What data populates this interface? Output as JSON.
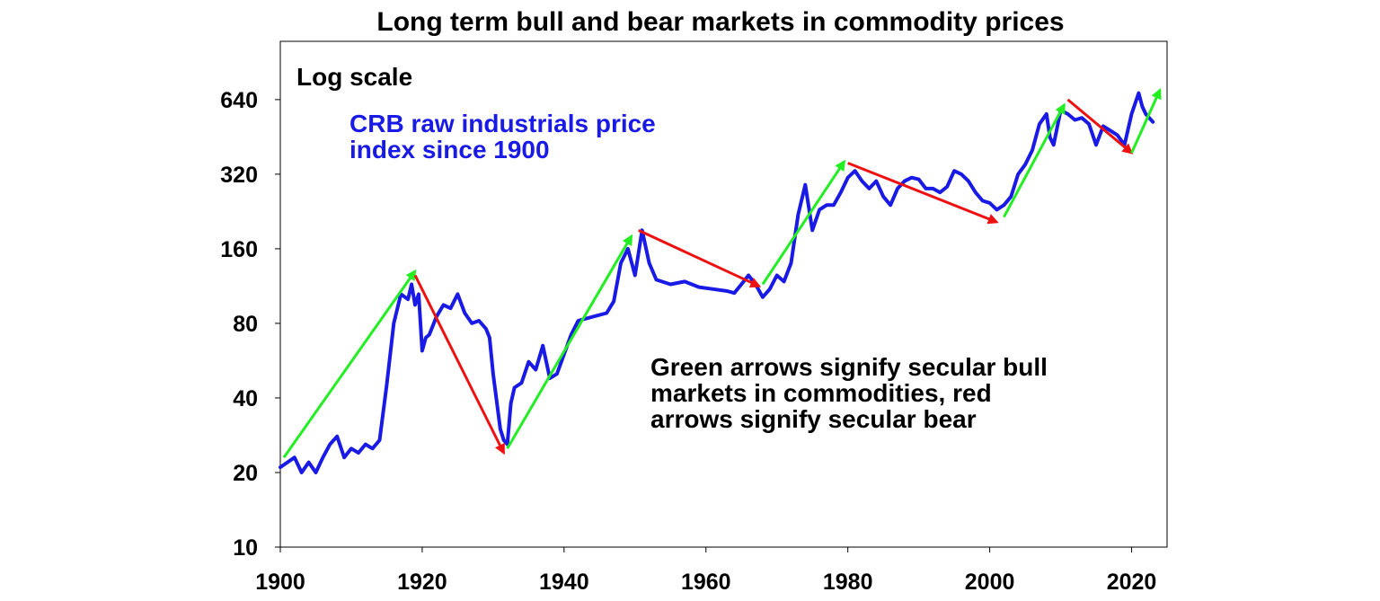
{
  "chart_data": {
    "type": "line",
    "title": "Long term bull and bear markets in commodity prices",
    "scale": "log",
    "xlim": [
      1900,
      2025
    ],
    "ylim": [
      10,
      1100
    ],
    "x_ticks": [
      "1900",
      "1920",
      "1940",
      "1960",
      "1980",
      "2000",
      "2020"
    ],
    "y_ticks": [
      "10",
      "20",
      "40",
      "80",
      "160",
      "320",
      "640"
    ],
    "annotations": {
      "scale_label": "Log scale",
      "series_label_line1": "CRB raw industrials price",
      "series_label_line2": "index since 1900",
      "note_line1": "Green arrows signify secular bull",
      "note_line2": "markets in commodities, red",
      "note_line3": "arrows signify secular bear"
    },
    "colors": {
      "series": "#1a1ae6",
      "bull": "#22ee22",
      "bear": "#ee1111"
    },
    "series": [
      {
        "x": [
          1900,
          1902,
          1903,
          1904,
          1905,
          1906,
          1907,
          1908,
          1909,
          1910,
          1911,
          1912,
          1913,
          1914,
          1915,
          1916,
          1917,
          1918,
          1918.5,
          1919,
          1919.5,
          1920,
          1920.5,
          1921,
          1922,
          1923,
          1924,
          1925,
          1926,
          1927,
          1928,
          1929,
          1929.5,
          1930,
          1931,
          1931.5,
          1932,
          1932.5,
          1933,
          1934,
          1935,
          1936,
          1937,
          1938,
          1939,
          1940,
          1941,
          1942,
          1944,
          1946,
          1947,
          1948,
          1949,
          1950,
          1951,
          1952,
          1953,
          1955,
          1957,
          1959,
          1961,
          1963,
          1964,
          1965,
          1966,
          1967,
          1968,
          1969,
          1970,
          1971,
          1972,
          1973,
          1974,
          1975,
          1976,
          1977,
          1978,
          1979,
          1980,
          1981,
          1982,
          1983,
          1984,
          1985,
          1986,
          1987,
          1988,
          1989,
          1990,
          1991,
          1992,
          1993,
          1994,
          1995,
          1996,
          1997,
          1998,
          1999,
          2000,
          2001,
          2002,
          2003,
          2004,
          2005,
          2006,
          2007,
          2008,
          2008.5,
          2009,
          2010,
          2011,
          2012,
          2013,
          2014,
          2015,
          2016,
          2017,
          2018,
          2019,
          2020,
          2021,
          2021.5,
          2022,
          2023
        ],
        "y": [
          21,
          23,
          20,
          22,
          20,
          23,
          26,
          28,
          23,
          25,
          24,
          26,
          25,
          27,
          45,
          80,
          105,
          100,
          115,
          95,
          105,
          62,
          70,
          72,
          85,
          95,
          92,
          105,
          88,
          80,
          82,
          76,
          70,
          50,
          30,
          27,
          26,
          38,
          44,
          46,
          56,
          52,
          65,
          48,
          50,
          60,
          72,
          82,
          85,
          88,
          98,
          140,
          160,
          125,
          190,
          140,
          120,
          115,
          118,
          112,
          110,
          108,
          106,
          115,
          125,
          115,
          102,
          110,
          125,
          118,
          140,
          220,
          290,
          190,
          230,
          240,
          240,
          270,
          310,
          330,
          300,
          280,
          300,
          260,
          240,
          280,
          300,
          310,
          305,
          280,
          280,
          270,
          285,
          330,
          320,
          300,
          270,
          250,
          245,
          230,
          240,
          260,
          320,
          350,
          400,
          510,
          560,
          450,
          420,
          580,
          560,
          530,
          540,
          510,
          420,
          500,
          480,
          460,
          420,
          560,
          680,
          600,
          560,
          520
        ]
      }
    ],
    "arrows": [
      {
        "kind": "bull",
        "from": [
          1900.5,
          23
        ],
        "to": [
          1919,
          130
        ]
      },
      {
        "kind": "bear",
        "from": [
          1919,
          125
        ],
        "to": [
          1931.5,
          24
        ]
      },
      {
        "kind": "bull",
        "from": [
          1932,
          25
        ],
        "to": [
          1949.5,
          180
        ]
      },
      {
        "kind": "bear",
        "from": [
          1950.5,
          190
        ],
        "to": [
          1967.5,
          113
        ]
      },
      {
        "kind": "bull",
        "from": [
          1968,
          115
        ],
        "to": [
          1979.5,
          360
        ]
      },
      {
        "kind": "bear",
        "from": [
          1980,
          355
        ],
        "to": [
          2001,
          205
        ]
      },
      {
        "kind": "bull",
        "from": [
          2002,
          215
        ],
        "to": [
          2010.5,
          610
        ]
      },
      {
        "kind": "bear",
        "from": [
          2011,
          640
        ],
        "to": [
          2020,
          390
        ]
      },
      {
        "kind": "bull",
        "from": [
          2020,
          390
        ],
        "to": [
          2024,
          700
        ]
      }
    ]
  }
}
